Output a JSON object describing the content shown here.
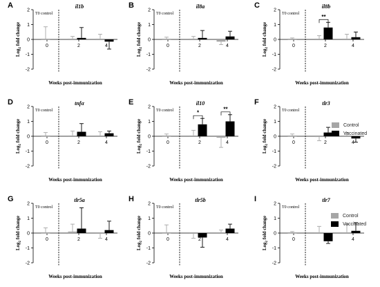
{
  "figure": {
    "legend_top": {
      "items": [
        {
          "label": "Control",
          "color": "#a6a6a6"
        },
        {
          "label": "Vaccinated",
          "color": "#000000"
        }
      ]
    },
    "legend_bottom": {
      "items": [
        {
          "label": "Control",
          "color": "#a6a6a6"
        },
        {
          "label": "Vaccinated",
          "color": "#000000"
        }
      ]
    }
  },
  "chart_data": [
    {
      "type": "bar",
      "panel_letter": "A",
      "gene": "il1b",
      "control_label": "T0 control",
      "xlabel": "",
      "ylabel": "Log2 fold change",
      "x_ticks": [
        "0",
        "2",
        "4"
      ],
      "y_ticks": [
        -2,
        -1,
        0,
        1,
        2
      ],
      "ylim": [
        -2,
        2
      ],
      "series": [
        {
          "name": "Control",
          "color": "#a6a6a6",
          "values": [
            0.0,
            0.05,
            0.05
          ],
          "error": [
            0.85,
            0.15,
            0.3
          ]
        },
        {
          "name": "Vaccinated",
          "color": "#000000",
          "values": [
            null,
            0.1,
            -0.15
          ],
          "error": [
            null,
            0.7,
            0.5
          ]
        }
      ],
      "significance": []
    },
    {
      "type": "bar",
      "panel_letter": "B",
      "gene": "il8a",
      "control_label": "T0 control",
      "xlabel": "",
      "ylabel": "Log2 fold change",
      "x_ticks": [
        "0",
        "2",
        "4"
      ],
      "y_ticks": [
        -2,
        -1,
        0,
        1,
        2
      ],
      "ylim": [
        -2,
        2
      ],
      "series": [
        {
          "name": "Control",
          "color": "#a6a6a6",
          "values": [
            0.0,
            0.05,
            -0.15
          ],
          "error": [
            0.15,
            0.15,
            0.2
          ]
        },
        {
          "name": "Vaccinated",
          "color": "#000000",
          "values": [
            null,
            0.1,
            0.2
          ],
          "error": [
            null,
            0.5,
            0.35
          ]
        }
      ],
      "significance": []
    },
    {
      "type": "bar",
      "panel_letter": "C",
      "gene": "il8b",
      "control_label": "T0 control",
      "xlabel": "",
      "ylabel": "Log2 fold change",
      "x_ticks": [
        "0",
        "2",
        "4"
      ],
      "y_ticks": [
        -2,
        -1,
        0,
        1,
        2
      ],
      "ylim": [
        -2,
        2
      ],
      "series": [
        {
          "name": "Control",
          "color": "#a6a6a6",
          "values": [
            0.0,
            0.05,
            0.05
          ],
          "error": [
            0.1,
            0.2,
            0.3
          ]
        },
        {
          "name": "Vaccinated",
          "color": "#000000",
          "values": [
            null,
            0.8,
            0.15
          ],
          "error": [
            null,
            0.35,
            0.35
          ]
        }
      ],
      "significance": [
        {
          "week_index": 1,
          "label": "**"
        }
      ]
    },
    {
      "type": "bar",
      "panel_letter": "D",
      "gene": "tnfα",
      "control_label": "T0 control",
      "xlabel": "",
      "ylabel": "Log2 fold change",
      "x_ticks": [
        "0",
        "2",
        "4"
      ],
      "y_ticks": [
        -2,
        -1,
        0,
        1,
        2
      ],
      "ylim": [
        -2,
        2
      ],
      "series": [
        {
          "name": "Control",
          "color": "#a6a6a6",
          "values": [
            0.0,
            0.05,
            0.05
          ],
          "error": [
            0.25,
            0.3,
            0.25
          ]
        },
        {
          "name": "Vaccinated",
          "color": "#000000",
          "values": [
            null,
            0.3,
            0.2
          ],
          "error": [
            null,
            0.55,
            0.15
          ]
        }
      ],
      "significance": []
    },
    {
      "type": "bar",
      "panel_letter": "E",
      "gene": "il10",
      "control_label": "T0 control",
      "xlabel": "",
      "ylabel": "Log2 fold change",
      "x_ticks": [
        "0",
        "2",
        "4"
      ],
      "y_ticks": [
        -2,
        -1,
        0,
        1,
        2
      ],
      "ylim": [
        -2,
        2
      ],
      "series": [
        {
          "name": "Control",
          "color": "#a6a6a6",
          "values": [
            0.0,
            0.05,
            -0.1
          ],
          "error": [
            0.15,
            0.35,
            0.65
          ]
        },
        {
          "name": "Vaccinated",
          "color": "#000000",
          "values": [
            null,
            0.8,
            1.0
          ],
          "error": [
            null,
            0.4,
            0.45
          ]
        }
      ],
      "significance": [
        {
          "week_index": 1,
          "label": "*"
        },
        {
          "week_index": 2,
          "label": "**"
        }
      ]
    },
    {
      "type": "bar",
      "panel_letter": "F",
      "gene": "tlr3",
      "control_label": "T0 control",
      "xlabel": "",
      "ylabel": "Log2 fold change",
      "x_ticks": [
        "0",
        "2",
        "4"
      ],
      "y_ticks": [
        -2,
        -1,
        0,
        1,
        2
      ],
      "ylim": [
        -2,
        2
      ],
      "series": [
        {
          "name": "Control",
          "color": "#a6a6a6",
          "values": [
            0.0,
            -0.05,
            0.05
          ],
          "error": [
            0.15,
            0.25,
            0.2
          ]
        },
        {
          "name": "Vaccinated",
          "color": "#000000",
          "values": [
            null,
            0.25,
            -0.15
          ],
          "error": [
            null,
            0.35,
            0.25
          ]
        }
      ],
      "significance": []
    },
    {
      "type": "bar",
      "panel_letter": "G",
      "gene": "tlr5a",
      "control_label": "T0 control",
      "xlabel": "",
      "ylabel": "Log2 fold change",
      "x_ticks": [
        "0",
        "2",
        "4"
      ],
      "y_ticks": [
        -2,
        -1,
        0,
        1,
        2
      ],
      "ylim": [
        -2,
        2
      ],
      "series": [
        {
          "name": "Control",
          "color": "#a6a6a6",
          "values": [
            0.0,
            0.1,
            -0.05
          ],
          "error": [
            0.35,
            0.5,
            0.3
          ]
        },
        {
          "name": "Vaccinated",
          "color": "#000000",
          "values": [
            null,
            0.3,
            0.2
          ],
          "error": [
            null,
            1.4,
            0.6
          ]
        }
      ],
      "significance": []
    },
    {
      "type": "bar",
      "panel_letter": "H",
      "gene": "tlr5b",
      "control_label": "T0 control",
      "xlabel": "",
      "ylabel": "Log2 fold change",
      "x_ticks": [
        "0",
        "2",
        "4"
      ],
      "y_ticks": [
        -2,
        -1,
        0,
        1,
        2
      ],
      "ylim": [
        -2,
        2
      ],
      "series": [
        {
          "name": "Control",
          "color": "#a6a6a6",
          "values": [
            0.0,
            -0.05,
            0.05
          ],
          "error": [
            0.55,
            0.3,
            0.15
          ]
        },
        {
          "name": "Vaccinated",
          "color": "#000000",
          "values": [
            null,
            -0.3,
            0.3
          ],
          "error": [
            null,
            0.65,
            0.3
          ]
        }
      ],
      "significance": []
    },
    {
      "type": "bar",
      "panel_letter": "I",
      "gene": "tlr7",
      "control_label": "T0 control",
      "xlabel": "",
      "ylabel": "Log2 fold change",
      "x_ticks": [
        "0",
        "2",
        "4"
      ],
      "y_ticks": [
        -2,
        -1,
        0,
        1,
        2
      ],
      "ylim": [
        -2,
        2
      ],
      "series": [
        {
          "name": "Control",
          "color": "#a6a6a6",
          "values": [
            0.0,
            0.05,
            0.05
          ],
          "error": [
            0.1,
            0.4,
            0.55
          ]
        },
        {
          "name": "Vaccinated",
          "color": "#000000",
          "values": [
            null,
            -0.55,
            0.15
          ],
          "error": [
            null,
            0.15,
            0.55
          ]
        }
      ],
      "significance": []
    }
  ],
  "axis_text": {
    "xlabel": "Weeks post-immunization",
    "ylabel_main": "Log",
    "ylabel_sub": "2",
    "ylabel_rest": " fold change"
  }
}
